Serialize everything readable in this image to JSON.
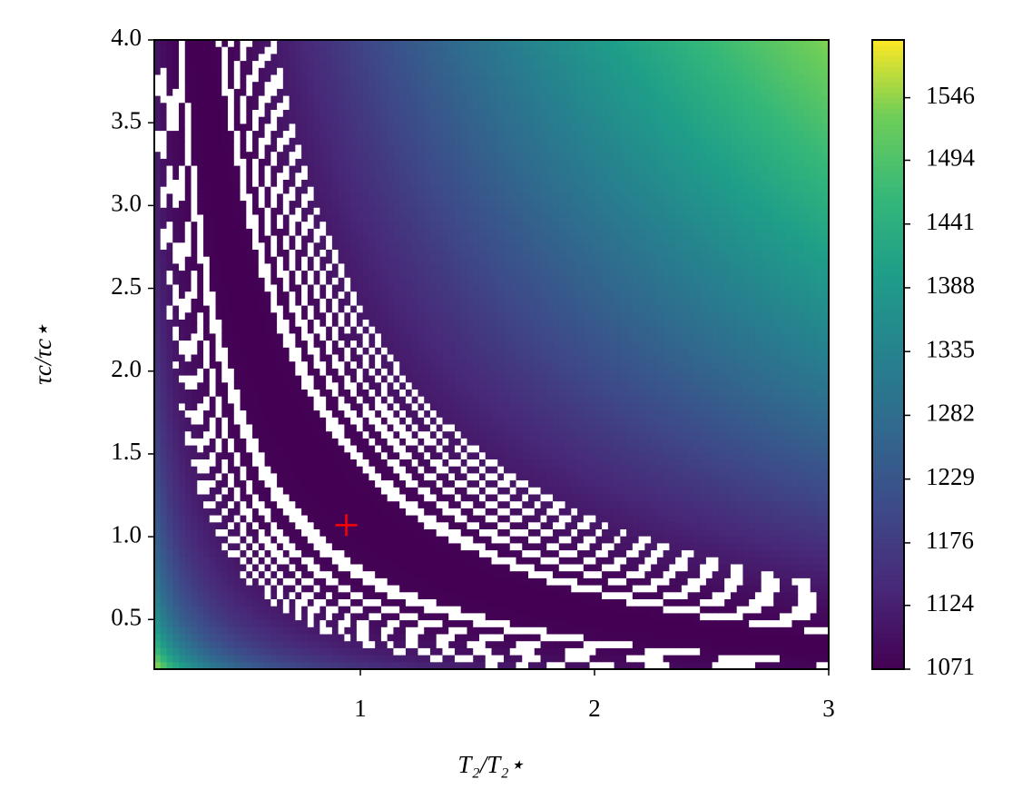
{
  "chart_data": {
    "type": "contour",
    "x_label": "T₂/T₂⋆",
    "y_label": "τc/τc⋆",
    "xlim": [
      0.12,
      3
    ],
    "xticks": [
      1,
      2,
      3
    ],
    "ylim": [
      0.2,
      4
    ],
    "yticks": [
      0.5,
      {
        "value": 1,
        "label": "1.0"
      },
      1.5,
      {
        "value": 2,
        "label": "2.0"
      },
      2.5,
      {
        "value": 3,
        "label": "3.0"
      },
      3.5,
      {
        "value": 4,
        "label": "4.0"
      }
    ],
    "colorbar": {
      "cmap": "viridis",
      "lim": [
        1071,
        1594
      ],
      "ticks": [
        1071,
        1124,
        1176,
        1229,
        1282,
        1335,
        1388,
        1441,
        1494,
        1546
      ]
    },
    "marker": {
      "x": 0.94,
      "y": 1.07,
      "color": "red"
    }
  }
}
